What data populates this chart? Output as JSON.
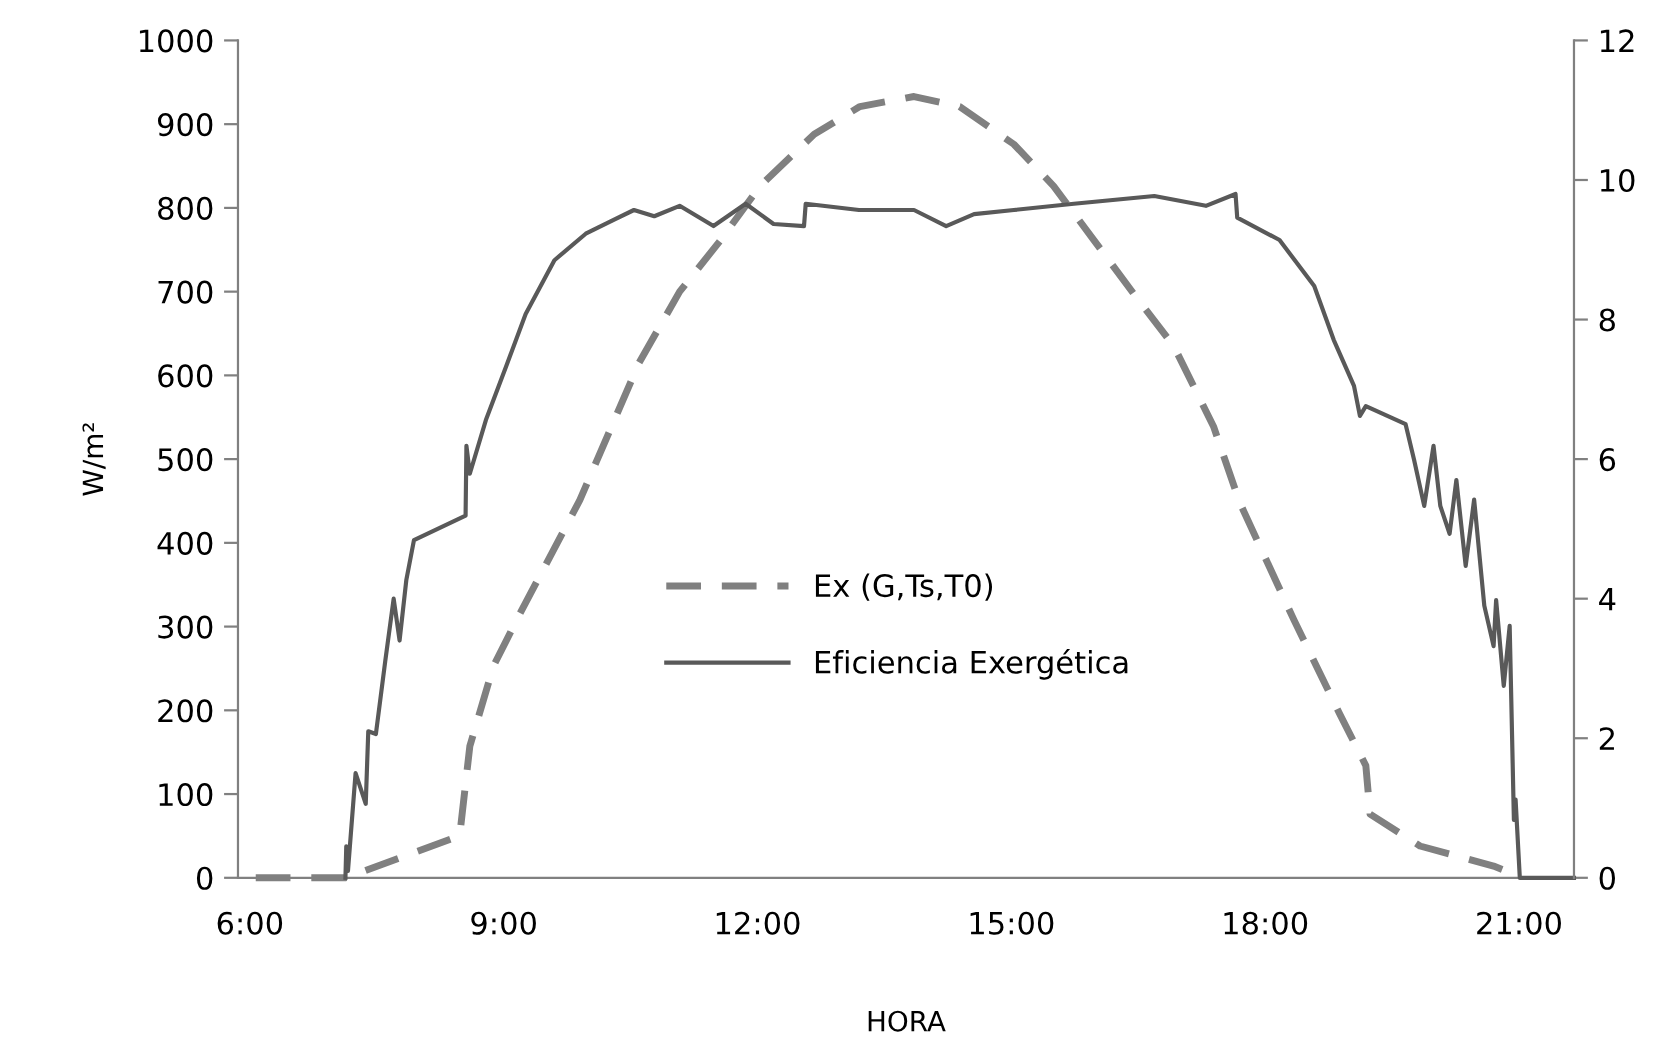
{
  "chart_data": {
    "type": "line",
    "xlabel": "HORA",
    "ylabel": "W/m²",
    "xlim": [
      5.86,
      21.65
    ],
    "xticks": [
      {
        "value": 6,
        "label": "6:00"
      },
      {
        "value": 9,
        "label": "9:00"
      },
      {
        "value": 12,
        "label": "12:00"
      },
      {
        "value": 15,
        "label": "15:00"
      },
      {
        "value": 18,
        "label": "18:00"
      },
      {
        "value": 21,
        "label": "21:00"
      }
    ],
    "ylim": [
      0,
      1000
    ],
    "yticks": [
      0,
      100,
      200,
      300,
      400,
      500,
      600,
      700,
      800,
      900,
      1000
    ],
    "y2lim": [
      0,
      12
    ],
    "y2ticks": [
      0,
      2,
      4,
      6,
      8,
      10,
      12
    ],
    "grid": false,
    "legend": "center",
    "marker": "none",
    "series": [
      {
        "name": "Ex (G,Ts,T0)",
        "color": "#808080",
        "line_style": "dashed",
        "x": [
          6.07,
          7.13,
          8.48,
          8.6,
          8.88,
          9.19,
          9.9,
          10.6,
          11.08,
          11.56,
          12.03,
          12.67,
          13.21,
          13.85,
          14.39,
          15.03,
          15.5,
          15.98,
          16.45,
          16.92,
          17.39,
          17.7,
          18.34,
          18.88,
          19.19,
          19.24,
          19.83,
          20.7,
          21.0
        ],
        "values": [
          0,
          0,
          50,
          157,
          253,
          315,
          451,
          615,
          700,
          761,
          826,
          888,
          921,
          933,
          921,
          876,
          826,
          761,
          697,
          635,
          539,
          448,
          308,
          196,
          134,
          76,
          38,
          14,
          2
        ]
      },
      {
        "name": "Eficiencia Exergética",
        "color": "#595959",
        "line_style": "solid",
        "axis": "y2",
        "x": [
          7.13,
          7.14,
          7.16,
          7.25,
          7.37,
          7.4,
          7.49,
          7.6,
          7.7,
          7.77,
          7.85,
          7.94,
          8.55,
          8.56,
          8.6,
          8.79,
          9.03,
          9.26,
          9.6,
          9.97,
          10.3,
          10.54,
          10.78,
          11.08,
          11.48,
          11.86,
          12.19,
          12.55,
          12.57,
          13.2,
          13.85,
          14.23,
          14.56,
          15.03,
          15.74,
          16.69,
          17.3,
          17.65,
          17.67,
          18.17,
          18.58,
          18.81,
          19.05,
          19.12,
          19.19,
          19.66,
          19.76,
          19.88,
          19.99,
          20.07,
          20.18,
          20.26,
          20.37,
          20.47,
          20.59,
          20.7,
          20.73,
          20.82,
          20.89,
          20.94,
          20.96,
          21.01,
          21.65
        ],
        "values": [
          0,
          0.45,
          0.1,
          1.5,
          1.06,
          2.1,
          2.06,
          3.1,
          4.0,
          3.4,
          4.27,
          4.84,
          5.19,
          6.19,
          5.79,
          6.56,
          7.33,
          8.08,
          8.85,
          9.23,
          9.43,
          9.57,
          9.48,
          9.63,
          9.34,
          9.66,
          9.37,
          9.34,
          9.66,
          9.57,
          9.57,
          9.34,
          9.51,
          9.57,
          9.66,
          9.77,
          9.63,
          9.8,
          9.46,
          9.14,
          8.48,
          7.71,
          7.05,
          6.62,
          6.76,
          6.5,
          5.99,
          5.33,
          6.19,
          5.33,
          4.93,
          5.7,
          4.47,
          5.42,
          3.9,
          3.32,
          3.98,
          2.75,
          3.61,
          0.83,
          1.12,
          0,
          0
        ]
      }
    ]
  }
}
